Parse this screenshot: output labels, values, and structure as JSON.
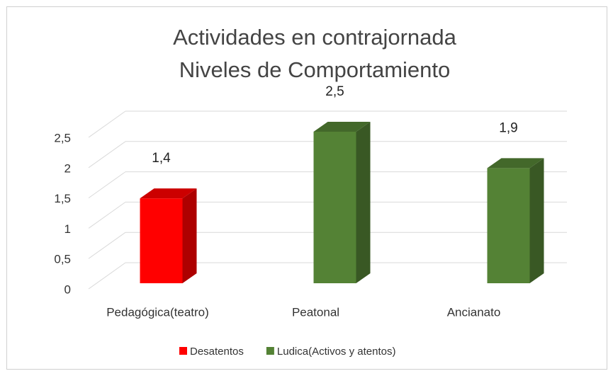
{
  "chart_data": {
    "type": "bar3d",
    "title": [
      "Actividades en contrajornada",
      "Niveles  de Comportamiento"
    ],
    "categories": [
      "Pedagógica(teatro)",
      "Peatonal",
      "Ancianato"
    ],
    "series": [
      {
        "name": "Desatentos",
        "color": "#ff0000",
        "values": [
          1.4,
          null,
          null
        ],
        "value_labels": [
          "1,4",
          null,
          null
        ]
      },
      {
        "name": "Ludica(Activos y  atentos)",
        "color": "#548235",
        "values": [
          null,
          2.5,
          1.9
        ],
        "value_labels": [
          null,
          "2,5",
          "1,9"
        ]
      }
    ],
    "ylim": [
      0,
      2.5
    ],
    "yticks": [
      0,
      {
        "value": 0.5,
        "label": "0,5"
      },
      1,
      {
        "value": 1.5,
        "label": "1,5"
      },
      2,
      {
        "value": 2.5,
        "label": "2,5"
      }
    ],
    "grid": true,
    "legend": "bottom"
  }
}
